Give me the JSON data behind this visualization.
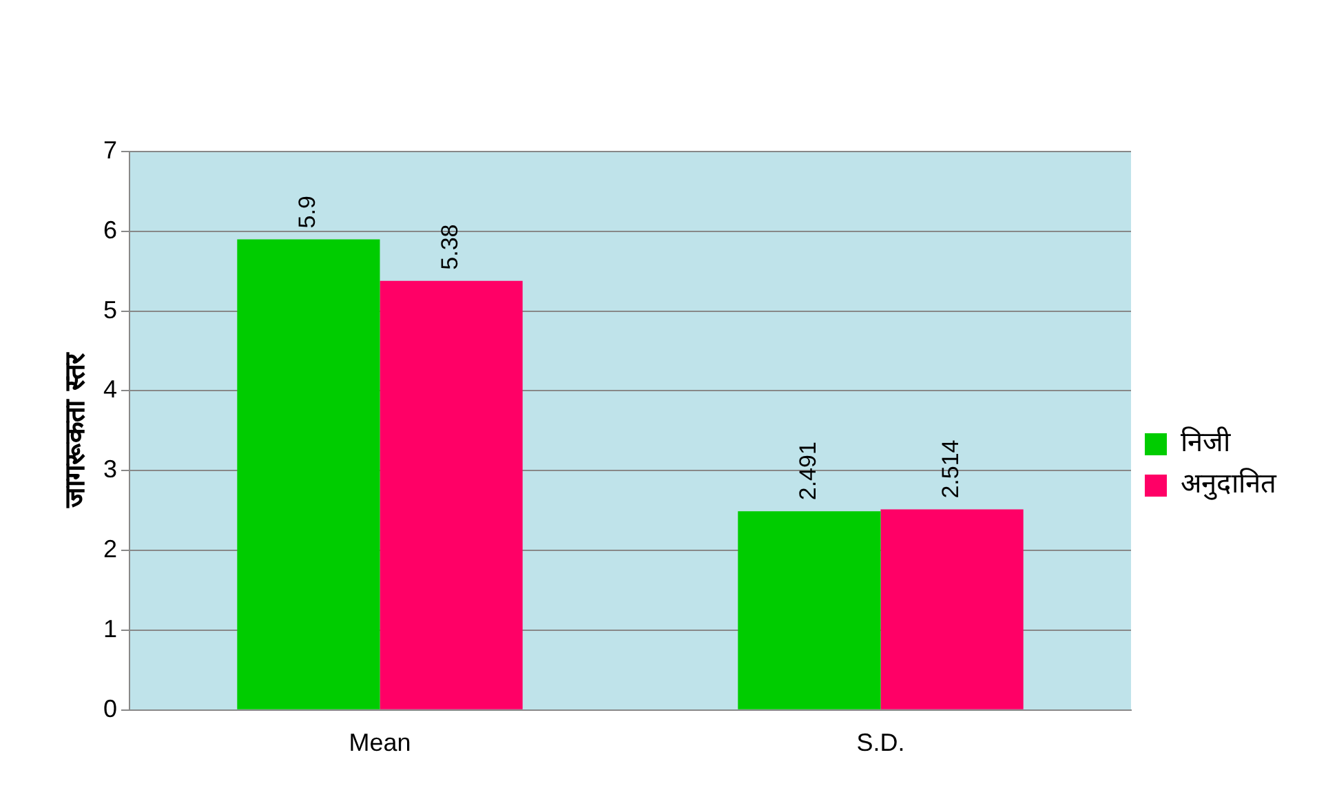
{
  "chart_data": {
    "type": "bar",
    "ylabel": "जागरूकता स्तर",
    "categories": [
      "Mean",
      "S.D."
    ],
    "series": [
      {
        "name": "निजी",
        "color": "#00cc00",
        "values": [
          5.9,
          2.491
        ]
      },
      {
        "name": "अनुदानित",
        "color": "#ff0066",
        "values": [
          5.38,
          2.514
        ]
      }
    ],
    "ylim": [
      0,
      7
    ],
    "yticks": [
      0,
      1,
      2,
      3,
      4,
      5,
      6,
      7
    ],
    "grid": "y",
    "legend": "right",
    "data_labels": true
  }
}
